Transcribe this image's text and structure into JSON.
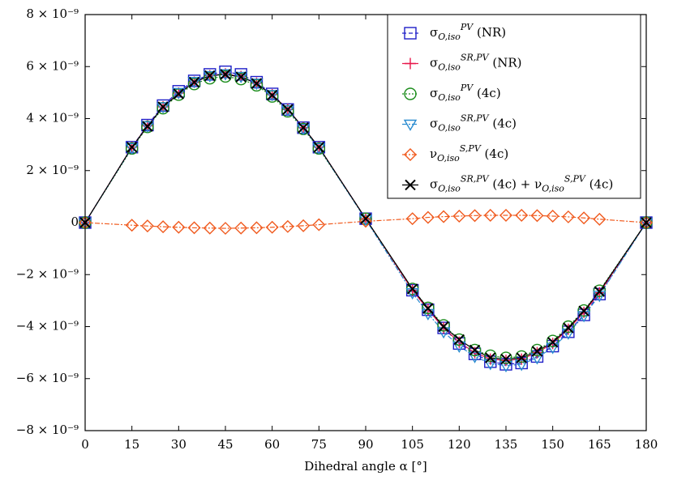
{
  "chart_data": {
    "type": "line",
    "x_label": "Dihedral angle α [°]",
    "x": [
      0,
      15,
      20,
      25,
      30,
      35,
      40,
      45,
      50,
      55,
      60,
      65,
      70,
      75,
      90,
      105,
      110,
      115,
      120,
      125,
      130,
      135,
      140,
      145,
      150,
      155,
      160,
      165,
      180
    ],
    "series": [
      {
        "name": "σ_{O,iso}^{PV} (NR)",
        "color": "#1f1fc8",
        "marker": "square",
        "values": [
          0,
          2.9e-09,
          3.75e-09,
          4.5e-09,
          5.05e-09,
          5.45e-09,
          5.7e-09,
          5.8e-09,
          5.7e-09,
          5.4e-09,
          4.95e-09,
          4.35e-09,
          3.65e-09,
          2.9e-09,
          1.5e-10,
          -2.6e-09,
          -3.35e-09,
          -4.05e-09,
          -4.65e-09,
          -5.05e-09,
          -5.35e-09,
          -5.45e-09,
          -5.4e-09,
          -5.15e-09,
          -4.75e-09,
          -4.2e-09,
          -3.55e-09,
          -2.75e-09,
          0
        ]
      },
      {
        "name": "σ_{O,iso}^{SR,PV} (NR)",
        "color": "#e8174a",
        "marker": "plus",
        "values": [
          0,
          2.9e-09,
          3.72e-09,
          4.45e-09,
          4.98e-09,
          5.4e-09,
          5.65e-09,
          5.72e-09,
          5.62e-09,
          5.36e-09,
          4.92e-09,
          4.35e-09,
          3.65e-09,
          2.9e-09,
          1.5e-10,
          -2.6e-09,
          -3.35e-09,
          -4.05e-09,
          -4.6e-09,
          -5e-09,
          -5.25e-09,
          -5.3e-09,
          -5.25e-09,
          -5e-09,
          -4.65e-09,
          -4.1e-09,
          -3.45e-09,
          -2.7e-09,
          0
        ]
      },
      {
        "name": "σ_{O,iso}^{PV} (4c)",
        "color": "#1a8c1a",
        "marker": "circle",
        "values": [
          0,
          2.85e-09,
          3.68e-09,
          4.4e-09,
          4.92e-09,
          5.33e-09,
          5.55e-09,
          5.62e-09,
          5.52e-09,
          5.28e-09,
          4.85e-09,
          4.28e-09,
          3.6e-09,
          2.85e-09,
          1.5e-10,
          -2.55e-09,
          -3.28e-09,
          -3.95e-09,
          -4.5e-09,
          -4.9e-09,
          -5.12e-09,
          -5.2e-09,
          -5.15e-09,
          -4.9e-09,
          -4.55e-09,
          -4e-09,
          -3.38e-09,
          -2.62e-09,
          0
        ]
      },
      {
        "name": "σ_{O,iso}^{SR,PV} (4c)",
        "color": "#2a8cd0",
        "marker": "triangle",
        "values": [
          0,
          2.88e-09,
          3.72e-09,
          4.45e-09,
          5e-09,
          5.42e-09,
          5.65e-09,
          5.72e-09,
          5.62e-09,
          5.36e-09,
          4.92e-09,
          4.33e-09,
          3.62e-09,
          2.88e-09,
          1.2e-10,
          -2.7e-09,
          -3.5e-09,
          -4.2e-09,
          -4.75e-09,
          -5.15e-09,
          -5.42e-09,
          -5.5e-09,
          -5.45e-09,
          -5.2e-09,
          -4.8e-09,
          -4.25e-09,
          -3.58e-09,
          -2.8e-09,
          0
        ]
      },
      {
        "name": "ν_{O,iso}^{S,PV} (4c)",
        "color": "#f05a1e",
        "marker": "diamond",
        "values": [
          0,
          -1e-10,
          -1.3e-10,
          -1.6e-10,
          -1.8e-10,
          -2e-10,
          -2.1e-10,
          -2.2e-10,
          -2.1e-10,
          -2e-10,
          -1.8e-10,
          -1.5e-10,
          -1.2e-10,
          -8e-11,
          5e-11,
          1.5e-10,
          2e-10,
          2.3e-10,
          2.5e-10,
          2.7e-10,
          2.8e-10,
          2.8e-10,
          2.8e-10,
          2.7e-10,
          2.5e-10,
          2.2e-10,
          1.8e-10,
          1.3e-10,
          0
        ]
      },
      {
        "name": "σ_{O,iso}^{SR,PV} (4c) + ν_{O,iso}^{S,PV} (4c)",
        "color": "#000000",
        "marker": "x",
        "values": [
          0,
          2.9e-09,
          3.7e-09,
          4.45e-09,
          4.95e-09,
          5.4e-09,
          5.65e-09,
          5.7e-09,
          5.6e-09,
          5.35e-09,
          4.9e-09,
          4.35e-09,
          3.65e-09,
          2.9e-09,
          1.5e-10,
          -2.55e-09,
          -3.3e-09,
          -4e-09,
          -4.5e-09,
          -4.9e-09,
          -5.2e-09,
          -5.25e-09,
          -5.2e-09,
          -4.95e-09,
          -4.6e-09,
          -4.05e-09,
          -3.4e-09,
          -2.65e-09,
          0
        ]
      }
    ],
    "xlim": [
      0,
      180
    ],
    "xticks": [
      0,
      15,
      30,
      45,
      60,
      75,
      90,
      105,
      120,
      135,
      150,
      165,
      180
    ],
    "ylim": [
      -8e-09,
      8e-09
    ],
    "yticks": [
      {
        "value": -8e-09,
        "label": "−8 × 10⁻⁹"
      },
      {
        "value": -6e-09,
        "label": "−6 × 10⁻⁹"
      },
      {
        "value": -4e-09,
        "label": "−4 × 10⁻⁹"
      },
      {
        "value": -2e-09,
        "label": "−2 × 10⁻⁹"
      },
      0,
      {
        "value": 2e-09,
        "label": "2 × 10⁻⁹"
      },
      {
        "value": 4e-09,
        "label": "4 × 10⁻⁹"
      },
      {
        "value": 6e-09,
        "label": "6 × 10⁻⁹"
      },
      {
        "value": 8e-09,
        "label": "8 × 10⁻⁹"
      }
    ],
    "legend": "upper right"
  }
}
